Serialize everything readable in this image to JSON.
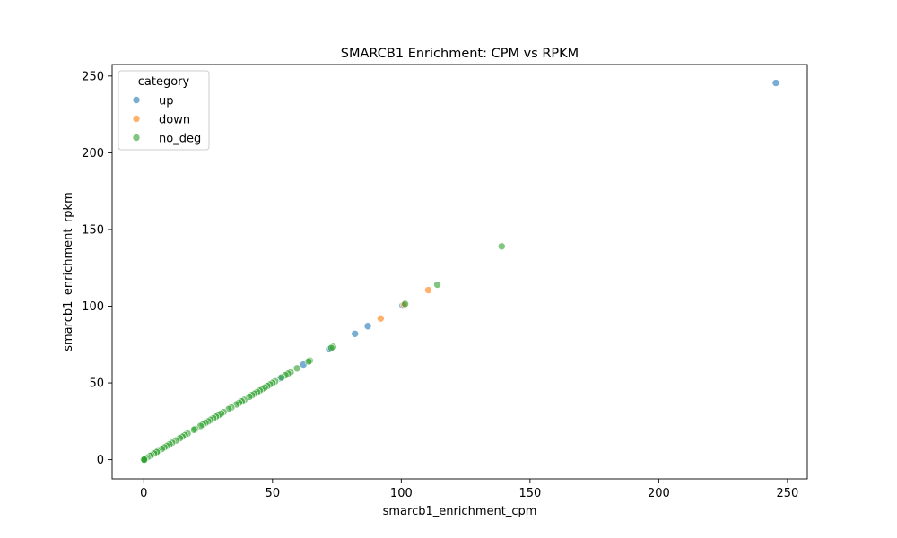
{
  "chart_data": {
    "type": "scatter",
    "title": "SMARCB1 Enrichment: CPM vs RPKM",
    "xlabel": "smarcb1_enrichment_cpm",
    "ylabel": "smarcb1_enrichment_rpkm",
    "xlim": [
      -12.3,
      257.7
    ],
    "ylim": [
      -12.5,
      257.5
    ],
    "xticks": [
      0,
      50,
      100,
      150,
      200,
      250
    ],
    "yticks": [
      0,
      50,
      100,
      150,
      200,
      250
    ],
    "xtick_labels": [
      "0",
      "50",
      "100",
      "150",
      "200",
      "250"
    ],
    "ytick_labels": [
      "0",
      "50",
      "100",
      "150",
      "200",
      "250"
    ],
    "grid": false,
    "legend": {
      "title": "category",
      "placement": "top-left"
    },
    "series": [
      {
        "name": "up",
        "color": "#1f77b4",
        "x": [
          245.5,
          87.0,
          82.0,
          72.0,
          62.0,
          53.0,
          100.5
        ],
        "y": [
          245.5,
          87.0,
          82.0,
          72.0,
          62.0,
          53.0,
          100.5
        ]
      },
      {
        "name": "down",
        "color": "#ff7f0e",
        "x": [
          110.5,
          92.0,
          101.0
        ],
        "y": [
          110.5,
          92.0,
          101.0
        ]
      },
      {
        "name": "no_deg",
        "color": "#2ca02c",
        "x": [
          139.0,
          114.0,
          101.5,
          73.5,
          72.8,
          64.5,
          64.0,
          59.5,
          57.0,
          56.0,
          55.0,
          53.5,
          51.0,
          50.0,
          49.0,
          48.0,
          47.0,
          46.0,
          45.0,
          44.0,
          43.0,
          42.0,
          41.0,
          39.0,
          38.0,
          37.0,
          36.0,
          34.0,
          33.0,
          31.0,
          30.0,
          29.0,
          28.0,
          27.0,
          26.0,
          25.0,
          24.0,
          23.0,
          22.0,
          20.0,
          19.5,
          17.0,
          16.0,
          15.0,
          14.0,
          12.5,
          11.0,
          10.0,
          9.0,
          8.0,
          7.0,
          5.5,
          5.0,
          4.0,
          3.0,
          2.5,
          1.5,
          1.0,
          0.5,
          0.0,
          0.0,
          0.2
        ],
        "y": [
          139.0,
          114.0,
          101.5,
          73.5,
          72.8,
          64.5,
          64.0,
          59.5,
          57.0,
          56.0,
          55.0,
          53.5,
          51.0,
          50.0,
          49.0,
          48.0,
          47.0,
          46.0,
          45.0,
          44.0,
          43.0,
          42.0,
          41.0,
          39.0,
          38.0,
          37.0,
          36.0,
          34.0,
          33.0,
          31.0,
          30.0,
          29.0,
          28.0,
          27.0,
          26.0,
          25.0,
          24.0,
          23.0,
          22.0,
          20.0,
          19.5,
          17.0,
          16.0,
          15.0,
          14.0,
          12.5,
          11.0,
          10.0,
          9.0,
          8.0,
          7.0,
          5.5,
          5.0,
          4.0,
          3.0,
          2.5,
          1.5,
          1.0,
          0.5,
          0.0,
          0.2,
          0.0
        ]
      }
    ]
  }
}
